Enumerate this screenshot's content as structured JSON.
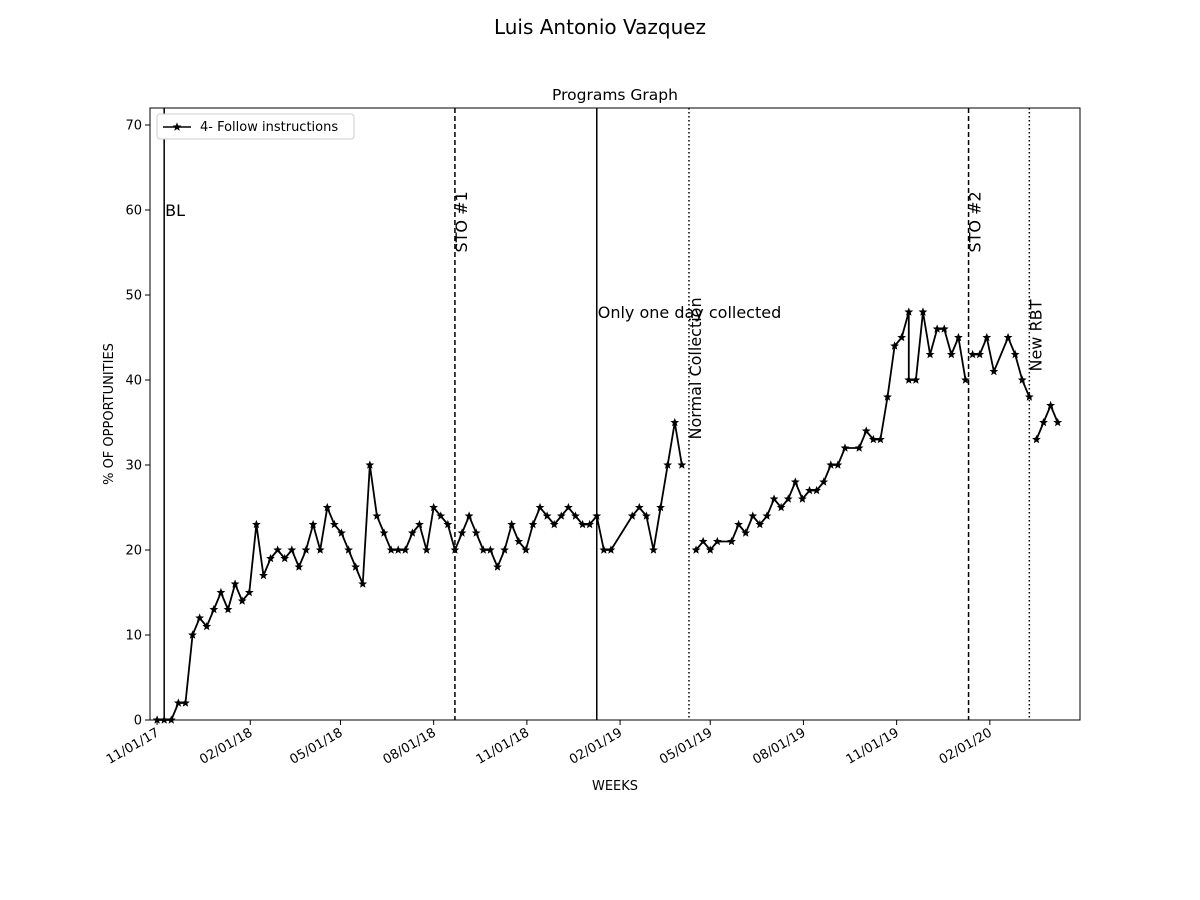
{
  "figure": {
    "suptitle": "Luis Antonio  Vazquez"
  },
  "chart_data": {
    "type": "line",
    "title": "Programs Graph",
    "xlabel": "WEEKS",
    "ylabel": "% OF OPPORTUNITIES",
    "ylim": [
      0,
      72
    ],
    "yticks": [
      0,
      10,
      20,
      30,
      40,
      50,
      60,
      70
    ],
    "xlim": [
      "2017-10-25",
      "2020-04-30"
    ],
    "xticks": [
      {
        "date": "2017-11-01",
        "label": "11/01/17"
      },
      {
        "date": "2018-02-01",
        "label": "02/01/18"
      },
      {
        "date": "2018-05-01",
        "label": "05/01/18"
      },
      {
        "date": "2018-08-01",
        "label": "08/01/18"
      },
      {
        "date": "2018-11-01",
        "label": "11/01/18"
      },
      {
        "date": "2019-02-01",
        "label": "02/01/19"
      },
      {
        "date": "2019-05-01",
        "label": "05/01/19"
      },
      {
        "date": "2019-08-01",
        "label": "08/01/19"
      },
      {
        "date": "2019-11-01",
        "label": "11/01/19"
      },
      {
        "date": "2020-02-01",
        "label": "02/01/20"
      }
    ],
    "grid": false,
    "legend": {
      "position": "top-left"
    },
    "color": "#000000",
    "series": [
      {
        "name": "4- Follow instructions",
        "marker": "star",
        "segments": [
          [
            [
              "2017-11-01",
              0
            ],
            [
              "2017-11-08",
              0
            ],
            [
              "2017-11-15",
              0
            ],
            [
              "2017-11-22",
              2
            ],
            [
              "2017-11-29",
              2
            ],
            [
              "2017-12-06",
              10
            ],
            [
              "2017-12-13",
              12
            ],
            [
              "2017-12-20",
              11
            ],
            [
              "2017-12-27",
              13
            ],
            [
              "2018-01-03",
              15
            ],
            [
              "2018-01-10",
              13
            ],
            [
              "2018-01-17",
              16
            ],
            [
              "2018-01-24",
              14
            ],
            [
              "2018-01-31",
              15
            ],
            [
              "2018-02-07",
              23
            ],
            [
              "2018-02-14",
              17
            ],
            [
              "2018-02-21",
              19
            ],
            [
              "2018-02-28",
              20
            ],
            [
              "2018-03-07",
              19
            ],
            [
              "2018-03-14",
              20
            ],
            [
              "2018-03-21",
              18
            ],
            [
              "2018-03-28",
              20
            ],
            [
              "2018-04-04",
              23
            ],
            [
              "2018-04-11",
              20
            ],
            [
              "2018-04-18",
              25
            ],
            [
              "2018-04-25",
              23
            ],
            [
              "2018-05-02",
              22
            ],
            [
              "2018-05-09",
              20
            ],
            [
              "2018-05-16",
              18
            ],
            [
              "2018-05-23",
              16
            ],
            [
              "2018-05-30",
              30
            ],
            [
              "2018-06-06",
              24
            ],
            [
              "2018-06-13",
              22
            ],
            [
              "2018-06-20",
              20
            ],
            [
              "2018-06-27",
              20
            ],
            [
              "2018-07-04",
              20
            ],
            [
              "2018-07-11",
              22
            ],
            [
              "2018-07-18",
              23
            ],
            [
              "2018-07-25",
              20
            ],
            [
              "2018-08-01",
              25
            ],
            [
              "2018-08-08",
              24
            ],
            [
              "2018-08-15",
              23
            ],
            [
              "2018-08-22",
              20
            ],
            [
              "2018-08-29",
              22
            ],
            [
              "2018-09-05",
              24
            ],
            [
              "2018-09-12",
              22
            ],
            [
              "2018-09-19",
              20
            ],
            [
              "2018-09-26",
              20
            ],
            [
              "2018-10-03",
              18
            ],
            [
              "2018-10-10",
              20
            ],
            [
              "2018-10-17",
              23
            ],
            [
              "2018-10-24",
              21
            ],
            [
              "2018-10-31",
              20
            ],
            [
              "2018-11-07",
              23
            ],
            [
              "2018-11-14",
              25
            ],
            [
              "2018-11-21",
              24
            ],
            [
              "2018-11-28",
              23
            ],
            [
              "2018-12-05",
              24
            ],
            [
              "2018-12-12",
              25
            ],
            [
              "2018-12-19",
              24
            ],
            [
              "2018-12-26",
              23
            ],
            [
              "2019-01-02",
              23
            ],
            [
              "2019-01-09",
              24
            ],
            [
              "2019-01-16",
              20
            ],
            [
              "2019-01-23",
              20
            ],
            [
              "2019-02-13",
              24
            ],
            [
              "2019-02-20",
              25
            ],
            [
              "2019-02-27",
              24
            ],
            [
              "2019-03-06",
              20
            ],
            [
              "2019-03-13",
              25
            ],
            [
              "2019-03-20",
              30
            ],
            [
              "2019-03-27",
              35
            ],
            [
              "2019-04-03",
              30
            ]
          ],
          [
            [
              "2019-04-17",
              20
            ],
            [
              "2019-04-24",
              21
            ],
            [
              "2019-05-01",
              20
            ],
            [
              "2019-05-08",
              21
            ],
            [
              "2019-05-22",
              21
            ],
            [
              "2019-05-29",
              23
            ],
            [
              "2019-06-05",
              22
            ],
            [
              "2019-06-12",
              24
            ],
            [
              "2019-06-19",
              23
            ],
            [
              "2019-06-26",
              24
            ],
            [
              "2019-07-03",
              26
            ],
            [
              "2019-07-10",
              25
            ],
            [
              "2019-07-17",
              26
            ],
            [
              "2019-07-24",
              28
            ],
            [
              "2019-07-31",
              26
            ],
            [
              "2019-08-07",
              27
            ],
            [
              "2019-08-14",
              27
            ],
            [
              "2019-08-21",
              28
            ],
            [
              "2019-08-28",
              30
            ],
            [
              "2019-09-04",
              30
            ],
            [
              "2019-09-11",
              32
            ],
            [
              "2019-09-25",
              32
            ],
            [
              "2019-10-02",
              34
            ],
            [
              "2019-10-09",
              33
            ],
            [
              "2019-10-16",
              33
            ],
            [
              "2019-10-23",
              38
            ],
            [
              "2019-10-30",
              44
            ],
            [
              "2019-11-06",
              45
            ],
            [
              "2019-11-13",
              48
            ],
            [
              "2019-11-13",
              40
            ],
            [
              "2019-11-20",
              40
            ],
            [
              "2019-11-27",
              48
            ],
            [
              "2019-12-04",
              43
            ],
            [
              "2019-12-11",
              46
            ],
            [
              "2019-12-18",
              46
            ],
            [
              "2019-12-25",
              43
            ],
            [
              "2020-01-01",
              45
            ],
            [
              "2020-01-08",
              40
            ]
          ],
          [
            [
              "2020-01-15",
              43
            ],
            [
              "2020-01-22",
              43
            ],
            [
              "2020-01-29",
              45
            ],
            [
              "2020-02-05",
              41
            ],
            [
              "2020-02-19",
              45
            ],
            [
              "2020-02-26",
              43
            ],
            [
              "2020-03-04",
              40
            ],
            [
              "2020-03-11",
              38
            ]
          ],
          [
            [
              "2020-03-18",
              33
            ],
            [
              "2020-03-25",
              35
            ],
            [
              "2020-04-01",
              37
            ],
            [
              "2020-04-08",
              35
            ]
          ]
        ]
      }
    ],
    "phase_lines": [
      {
        "date": "2017-11-08",
        "style": "solid",
        "label": "BL",
        "label_orientation": "horizontal",
        "label_y": 60
      },
      {
        "date": "2018-08-22",
        "style": "dashed",
        "label": "STO #1",
        "label_orientation": "vertical",
        "label_y": 55
      },
      {
        "date": "2019-01-09",
        "style": "solid",
        "label": "Only one day collected",
        "label_orientation": "horizontal",
        "label_y": 48
      },
      {
        "date": "2019-04-10",
        "style": "dotted",
        "label": "Normal Collection",
        "label_orientation": "vertical",
        "label_y": 33
      },
      {
        "date": "2020-01-11",
        "style": "dashed",
        "label": "STO #2",
        "label_orientation": "vertical",
        "label_y": 55
      },
      {
        "date": "2020-03-11",
        "style": "dotted",
        "label": "New RBT",
        "label_orientation": "vertical",
        "label_y": 41
      }
    ]
  }
}
